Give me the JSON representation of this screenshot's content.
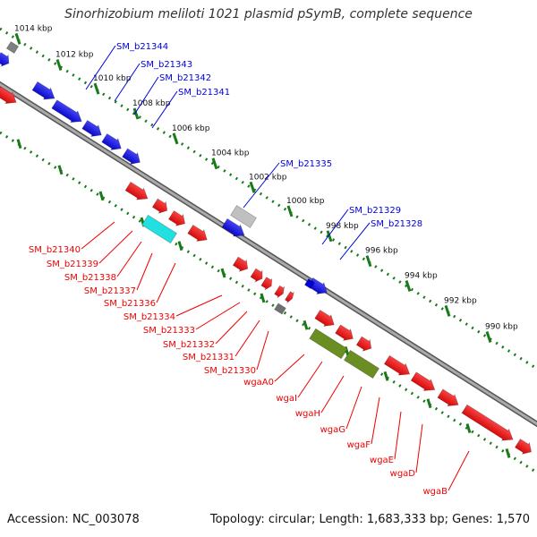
{
  "title": "Sinorhizobium meliloti 1021 plasmid pSymB, complete sequence",
  "footer": {
    "accession": "Accession: NC_003078",
    "summary": "Topology: circular; Length: 1,683,333 bp; Genes: 1,570"
  },
  "colors": {
    "forward": "#0000dd",
    "reverse": "#ee0000",
    "grey_gene": "#b0b0b0",
    "cyan_gene": "#22e0e0",
    "olive_gene": "#6b8e23",
    "ticks": "#1a7a1a",
    "backbone": "#808080",
    "kbp_text": "#111111"
  },
  "scale_ticks": [
    {
      "label": "1014 kbp"
    },
    {
      "label": "1012 kbp"
    },
    {
      "label": "1010 kbp"
    },
    {
      "label": "1008 kbp"
    },
    {
      "label": "1006 kbp"
    },
    {
      "label": "1004 kbp"
    },
    {
      "label": "1002 kbp"
    },
    {
      "label": "1000 kbp"
    },
    {
      "label": "998 kbp"
    },
    {
      "label": "996 kbp"
    },
    {
      "label": "994 kbp"
    },
    {
      "label": "992 kbp"
    },
    {
      "label": "990 kbp"
    }
  ],
  "forward_labels": [
    {
      "name": "SM_b21344"
    },
    {
      "name": "SM_b21343"
    },
    {
      "name": "SM_b21342"
    },
    {
      "name": "SM_b21341"
    },
    {
      "name": "SM_b21335"
    },
    {
      "name": "SM_b21329"
    },
    {
      "name": "SM_b21328"
    }
  ],
  "reverse_labels": [
    {
      "name": "SM_b21340"
    },
    {
      "name": "SM_b21339"
    },
    {
      "name": "SM_b21338"
    },
    {
      "name": "SM_b21337"
    },
    {
      "name": "SM_b21336"
    },
    {
      "name": "SM_b21334"
    },
    {
      "name": "SM_b21333"
    },
    {
      "name": "SM_b21332"
    },
    {
      "name": "SM_b21331"
    },
    {
      "name": "SM_b21330"
    },
    {
      "name": "wgaA0"
    },
    {
      "name": "wgaI"
    },
    {
      "name": "wgaH"
    },
    {
      "name": "wgaG"
    },
    {
      "name": "wgaF"
    },
    {
      "name": "wgaE"
    },
    {
      "name": "wgaD"
    },
    {
      "name": "wgaB"
    }
  ]
}
